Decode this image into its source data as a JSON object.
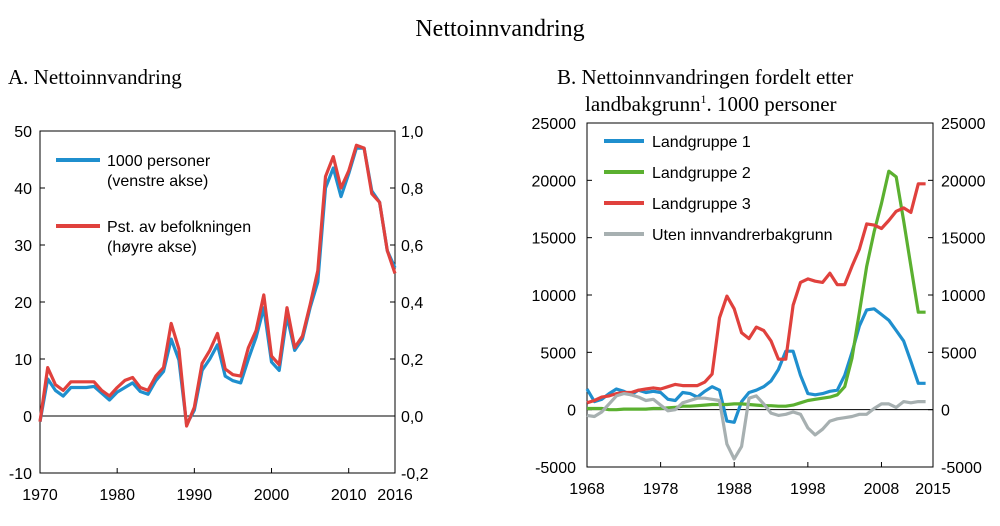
{
  "figure_title": "Nettoinnvandring",
  "chart_data": [
    {
      "type": "line",
      "title": "A. Nettoinnvandring",
      "xlim": [
        1970,
        2016
      ],
      "x_ticks": [
        "1970",
        "1980",
        "1990",
        "2000",
        "2010",
        "2016"
      ],
      "ylim_left": [
        -10,
        50
      ],
      "y_ticks_left": [
        "-10",
        "0",
        "10",
        "20",
        "30",
        "40",
        "50"
      ],
      "ylim_right": [
        -0.2,
        1.0
      ],
      "y_ticks_right": [
        "-0,2",
        "0,0",
        "0,2",
        "0,4",
        "0,6",
        "0,8",
        "1,0"
      ],
      "legend_position": "top-left",
      "x": [
        1970,
        1971,
        1972,
        1973,
        1974,
        1975,
        1976,
        1977,
        1978,
        1979,
        1980,
        1981,
        1982,
        1983,
        1984,
        1985,
        1986,
        1987,
        1988,
        1989,
        1990,
        1991,
        1992,
        1993,
        1994,
        1995,
        1996,
        1997,
        1998,
        1999,
        2000,
        2001,
        2002,
        2003,
        2004,
        2005,
        2006,
        2007,
        2008,
        2009,
        2010,
        2011,
        2012,
        2013,
        2014,
        2015,
        2016
      ],
      "series": [
        {
          "name": "1000 personer\n(venstre akse)",
          "axis": "left",
          "color": "#1f8fce",
          "values": [
            -1.0,
            6.5,
            4.5,
            3.5,
            5.0,
            5.0,
            5.0,
            5.2,
            4.0,
            2.8,
            4.2,
            5.0,
            5.8,
            4.3,
            3.8,
            6.2,
            7.8,
            13.5,
            9.8,
            -1.5,
            1.0,
            8.0,
            10.0,
            12.5,
            7.0,
            6.2,
            5.8,
            10.0,
            13.8,
            19.0,
            9.5,
            8.0,
            17.5,
            11.5,
            13.5,
            19.0,
            23.5,
            40.0,
            43.5,
            38.5,
            42.5,
            47.0,
            47.0,
            39.5,
            37.5,
            29.0,
            26.0
          ]
        },
        {
          "name": "Pst. av befolkningen\n(høyre akse)",
          "axis": "right",
          "color": "#e0413d",
          "values": [
            -0.02,
            0.17,
            0.11,
            0.09,
            0.12,
            0.12,
            0.12,
            0.12,
            0.09,
            0.07,
            0.1,
            0.125,
            0.135,
            0.1,
            0.09,
            0.14,
            0.17,
            0.325,
            0.235,
            -0.035,
            0.03,
            0.185,
            0.23,
            0.29,
            0.165,
            0.145,
            0.14,
            0.24,
            0.3,
            0.425,
            0.21,
            0.18,
            0.38,
            0.24,
            0.28,
            0.39,
            0.51,
            0.84,
            0.91,
            0.8,
            0.86,
            0.95,
            0.94,
            0.78,
            0.75,
            0.58,
            0.5
          ]
        }
      ]
    },
    {
      "type": "line",
      "title": "B. Nettoinnvandringen fordelt etter landbakgrunn",
      "title_line1": "B. Nettoinnvandringen fordelt etter",
      "title_line2": "landbakgrunn",
      "title_footnote": "1",
      "title_line2_suffix": ". 1000 personer",
      "xlim": [
        1968,
        2015
      ],
      "x_ticks": [
        "1968",
        "1978",
        "1988",
        "1998",
        "2008",
        "2015"
      ],
      "ylim": [
        -5000,
        25000
      ],
      "y_ticks": [
        "-5000",
        "0",
        "5000",
        "10000",
        "15000",
        "20000",
        "25000"
      ],
      "legend_position": "top-left",
      "x": [
        1968,
        1969,
        1970,
        1971,
        1972,
        1973,
        1974,
        1975,
        1976,
        1977,
        1978,
        1979,
        1980,
        1981,
        1982,
        1983,
        1984,
        1985,
        1986,
        1987,
        1988,
        1989,
        1990,
        1991,
        1992,
        1993,
        1994,
        1995,
        1996,
        1997,
        1998,
        1999,
        2000,
        2001,
        2002,
        2003,
        2004,
        2005,
        2006,
        2007,
        2008,
        2009,
        2010,
        2011,
        2012,
        2013,
        2014
      ],
      "series": [
        {
          "name": "Landgruppe 1",
          "color": "#1f8fce",
          "values": [
            1800,
            700,
            900,
            1400,
            1800,
            1600,
            1300,
            1700,
            1500,
            1600,
            1500,
            900,
            800,
            1500,
            1400,
            1100,
            1600,
            2000,
            1700,
            -1000,
            -1100,
            700,
            1500,
            1700,
            2000,
            2500,
            3500,
            5100,
            5100,
            3000,
            1400,
            1300,
            1400,
            1600,
            1700,
            3000,
            5000,
            7300,
            8700,
            8800,
            8300,
            7800,
            6900,
            6000,
            4200,
            2300,
            2300
          ]
        },
        {
          "name": "Landgruppe 2",
          "color": "#5bb030",
          "values": [
            100,
            100,
            100,
            0,
            0,
            50,
            50,
            50,
            50,
            100,
            100,
            150,
            200,
            300,
            300,
            350,
            400,
            450,
            450,
            450,
            500,
            500,
            450,
            400,
            350,
            350,
            300,
            300,
            400,
            600,
            800,
            900,
            1000,
            1100,
            1300,
            2000,
            4500,
            8500,
            12500,
            15500,
            18000,
            20800,
            20300,
            16500,
            12500,
            8500,
            8500
          ]
        },
        {
          "name": "Landgruppe 3",
          "color": "#e0413d",
          "values": [
            600,
            800,
            1100,
            1200,
            1400,
            1500,
            1500,
            1700,
            1800,
            1900,
            1800,
            2000,
            2200,
            2100,
            2100,
            2100,
            2400,
            3100,
            8000,
            9900,
            8800,
            6700,
            6200,
            7200,
            6900,
            6000,
            4400,
            4400,
            9100,
            11100,
            11400,
            11200,
            11100,
            11900,
            10900,
            10900,
            12500,
            14000,
            16200,
            16100,
            15800,
            16500,
            17300,
            17600,
            17200,
            19700,
            19700
          ]
        },
        {
          "name": "Uten innvandrerbakgrunn",
          "color": "#a7b0b1",
          "values": [
            -500,
            -600,
            -200,
            500,
            1200,
            1400,
            1300,
            1100,
            800,
            900,
            400,
            -100,
            0,
            600,
            800,
            1000,
            1000,
            900,
            800,
            -3000,
            -4300,
            -3200,
            1000,
            1200,
            500,
            -300,
            -500,
            -400,
            -200,
            -400,
            -1600,
            -2200,
            -1700,
            -1000,
            -800,
            -700,
            -600,
            -400,
            -400,
            100,
            500,
            500,
            200,
            700,
            600,
            700,
            700
          ]
        }
      ]
    }
  ]
}
